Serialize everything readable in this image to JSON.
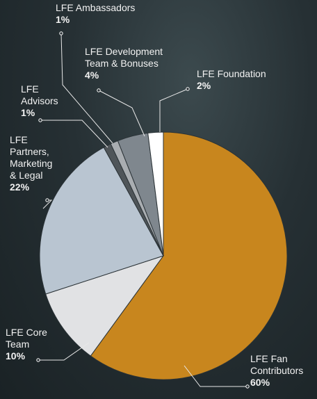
{
  "chart_data": {
    "type": "pie",
    "categories": [
      "LFE Fan Contributors",
      "LFE Core Team",
      "LFE Partners, Marketing & Legal",
      "LFE Advisors",
      "LFE Ambassadors",
      "LFE Development Team & Bonuses",
      "LFE Foundation"
    ],
    "values": [
      60,
      10,
      22,
      1,
      1,
      4,
      2
    ],
    "value_labels": [
      "60%",
      "10%",
      "22%",
      "1%",
      "1%",
      "4%",
      "2%"
    ],
    "colors": [
      "#c8861e",
      "#e1e2e4",
      "#b9c5d1",
      "#4f5559",
      "#a9adb1",
      "#7f878e",
      "#ffffff"
    ]
  }
}
